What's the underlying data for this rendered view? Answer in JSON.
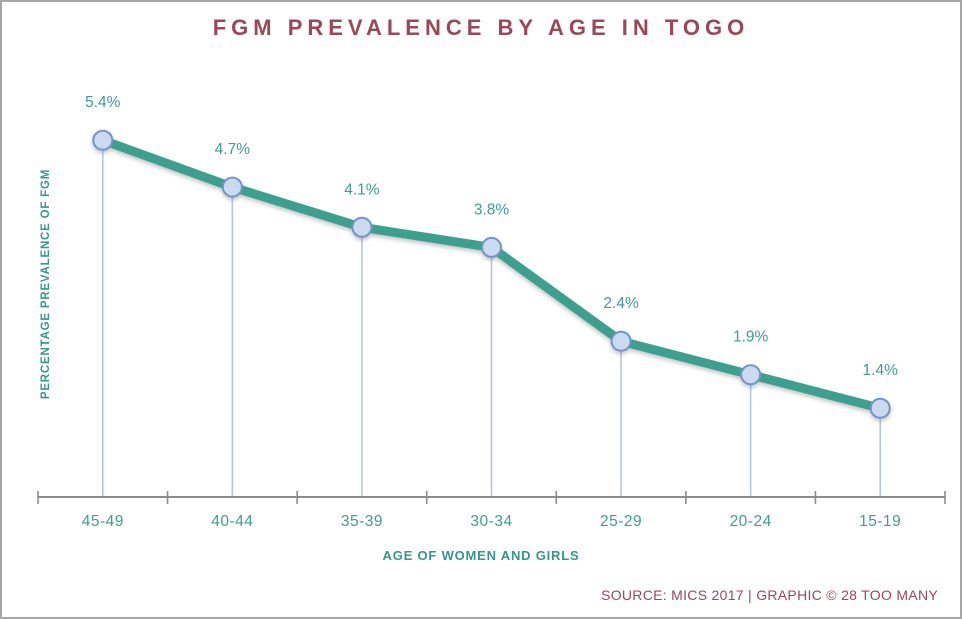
{
  "title": "FGM PREVALENCE BY AGE IN TOGO",
  "footer": {
    "source": "SOURCE: MICS 2017 | GRAPHIC © 28 TOO MANY"
  },
  "chart_data": {
    "type": "line",
    "title": "FGM PREVALENCE BY AGE IN TOGO",
    "xlabel": "AGE OF WOMEN AND GIRLS",
    "ylabel": "PERCENTAGE PREVALENCE OF FGM",
    "categories": [
      "45-49",
      "40-44",
      "35-39",
      "30-34",
      "25-29",
      "20-24",
      "15-19"
    ],
    "values": [
      5.4,
      4.7,
      4.1,
      3.8,
      2.4,
      1.9,
      1.4
    ],
    "value_labels": [
      "5.4%",
      "4.7%",
      "4.1%",
      "3.8%",
      "2.4%",
      "1.9%",
      "1.4%"
    ],
    "ylim": [
      0,
      6.5
    ],
    "grid": false,
    "legend": "none",
    "marker_style": "circle-with-drop-line",
    "colors": {
      "line": "#3da08f",
      "marker_fill": "#c9daf1",
      "marker_border": "#7593c4",
      "drop_line": "#b3c6e7",
      "axis": "#8c8c8c",
      "data_label_text": "#3e9c90",
      "tick_label_text": "#3e9c90",
      "axis_title_text": "#35968a",
      "chart_title_text": "#9a4758",
      "source_text": "#9a4758",
      "frame_border": "#a6a6a6",
      "background": "#ffffff"
    }
  }
}
